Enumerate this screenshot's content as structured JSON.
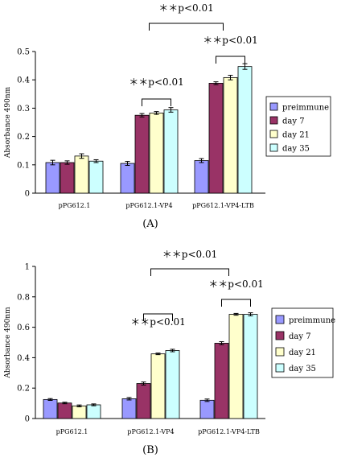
{
  "chart_data": [
    {
      "panel_label": "(A)",
      "type": "bar",
      "ylabel": "Absorbance 490nm",
      "ylim": [
        0,
        0.5
      ],
      "yticks": [
        0,
        0.1,
        0.2,
        0.3,
        0.4,
        0.5
      ],
      "ytick_labels": [
        "0",
        "0.1",
        "0.2",
        "0.3",
        "0.4",
        "0.5"
      ],
      "categories": [
        "pPG612.1",
        "pPG612.1-VP4",
        "pPG612.1-VP4-LTB"
      ],
      "series": [
        {
          "name": "preimmune",
          "color": "#9999ff",
          "values": [
            0.108,
            0.105,
            0.115
          ],
          "errors": [
            0.008,
            0.007,
            0.007
          ]
        },
        {
          "name": "day 7",
          "color": "#993366",
          "values": [
            0.108,
            0.275,
            0.388
          ],
          "errors": [
            0.006,
            0.006,
            0.005
          ]
        },
        {
          "name": "day 21",
          "color": "#ffffcc",
          "values": [
            0.131,
            0.283,
            0.408
          ],
          "errors": [
            0.008,
            0.005,
            0.008
          ]
        },
        {
          "name": "day 35",
          "color": "#ccffff",
          "values": [
            0.113,
            0.294,
            0.447
          ],
          "errors": [
            0.005,
            0.008,
            0.01
          ]
        }
      ],
      "legend_position": "right",
      "annotations": [
        {
          "text": "＊＊p<0.01",
          "from_category": 1,
          "to_category": 1
        },
        {
          "text": "＊＊p<0.01",
          "from_category": 2,
          "to_category": 2
        },
        {
          "text": "＊＊p<0.01",
          "from_category": 1,
          "to_category": 2
        }
      ]
    },
    {
      "panel_label": "(B)",
      "type": "bar",
      "ylabel": "Absorbance 490nm",
      "ylim": [
        0,
        1
      ],
      "yticks": [
        0,
        0.2,
        0.4,
        0.6,
        0.8,
        1
      ],
      "ytick_labels": [
        "0",
        "0.2",
        "0.4",
        "0.6",
        "0.8",
        "1"
      ],
      "categories": [
        "pPG612.1",
        "pPG612.1-VP4",
        "pPG612.1-VP4-LTB"
      ],
      "series": [
        {
          "name": "preimmune",
          "color": "#9999ff",
          "values": [
            0.125,
            0.13,
            0.12
          ],
          "errors": [
            0.006,
            0.008,
            0.008
          ]
        },
        {
          "name": "day 7",
          "color": "#993366",
          "values": [
            0.102,
            0.23,
            0.495
          ],
          "errors": [
            0.005,
            0.01,
            0.01
          ]
        },
        {
          "name": "day 21",
          "color": "#ffffcc",
          "values": [
            0.083,
            0.425,
            0.685
          ],
          "errors": [
            0.006,
            0.005,
            0.006
          ]
        },
        {
          "name": "day 35",
          "color": "#ccffff",
          "values": [
            0.09,
            0.447,
            0.685
          ],
          "errors": [
            0.006,
            0.008,
            0.01
          ]
        }
      ],
      "legend_position": "right",
      "annotations": [
        {
          "text": "＊＊p<0.01",
          "from_category": 1,
          "to_category": 1
        },
        {
          "text": "＊＊p<0.01",
          "from_category": 2,
          "to_category": 2
        },
        {
          "text": "＊＊p<0.01",
          "from_category": 1,
          "to_category": 2
        }
      ]
    }
  ]
}
